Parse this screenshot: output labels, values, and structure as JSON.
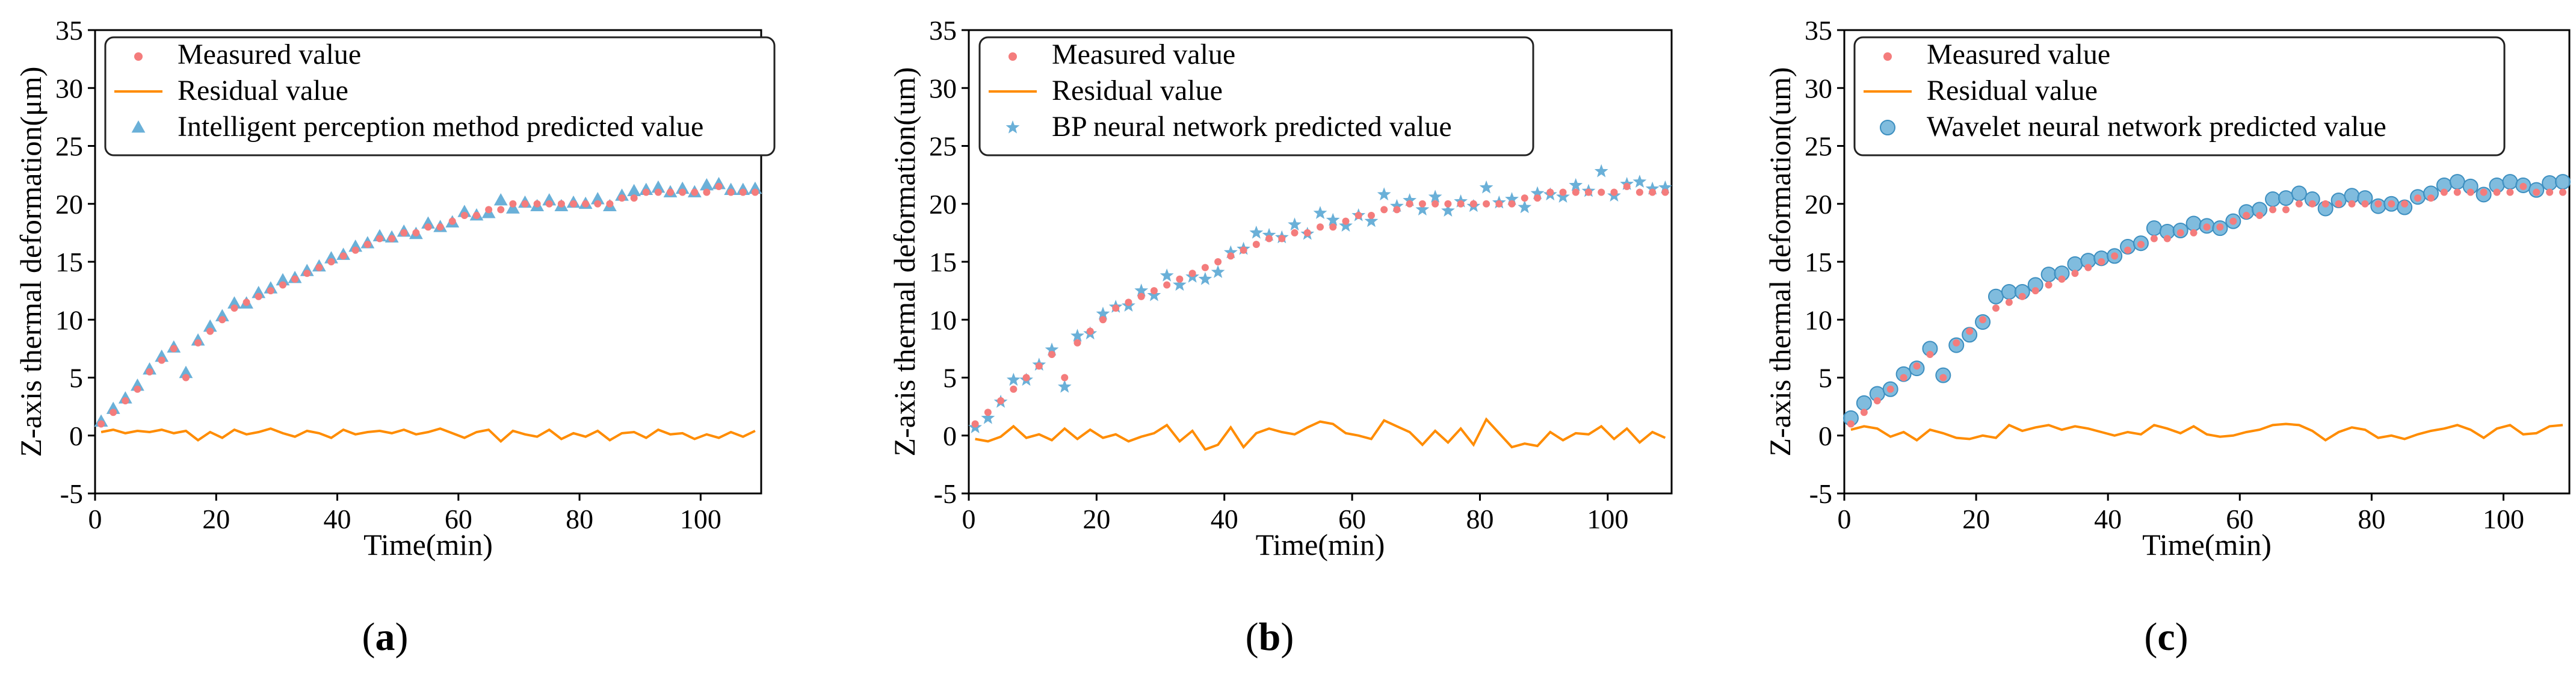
{
  "colors": {
    "measured": "#f47c7c",
    "residual": "#ff8c00",
    "predicted_a": "#6ab0d8",
    "predicted_b": "#6ab0d8",
    "predicted_c": "#6ab0d8",
    "axis": "#000000"
  },
  "chart_data": [
    {
      "type": "scatter",
      "caption_open": "(",
      "caption_letter": "a",
      "caption_close": ")",
      "xlabel": "Time(min)",
      "ylabel": "Z-axis thermal deformation(μm)",
      "xlim": [
        0,
        110
      ],
      "ylim": [
        -5,
        35
      ],
      "xticks": [
        0,
        20,
        40,
        60,
        80,
        100
      ],
      "yticks": [
        -5,
        0,
        5,
        10,
        15,
        20,
        25,
        30,
        35
      ],
      "legend_position": "top-left",
      "marker": "triangle",
      "x": [
        1,
        3,
        5,
        7,
        9,
        11,
        13,
        15,
        17,
        19,
        21,
        23,
        25,
        27,
        29,
        31,
        33,
        35,
        37,
        39,
        41,
        43,
        45,
        47,
        49,
        51,
        53,
        55,
        57,
        59,
        61,
        63,
        65,
        67,
        69,
        71,
        73,
        75,
        77,
        79,
        81,
        83,
        85,
        87,
        89,
        91,
        93,
        95,
        97,
        99,
        101,
        103,
        105,
        107,
        109
      ],
      "series": [
        {
          "name": "Measured value",
          "kind": "measured",
          "values": [
            1,
            2,
            3,
            4,
            5.5,
            6.5,
            7.5,
            5,
            8,
            9,
            10,
            11,
            11.5,
            12,
            12.5,
            13,
            13.5,
            14,
            14.5,
            15,
            15.5,
            16,
            16.5,
            17,
            17,
            17.5,
            17.5,
            18,
            18,
            18.5,
            19,
            19,
            19.5,
            19.5,
            20,
            20,
            20,
            20,
            20,
            20,
            20,
            20,
            20,
            20.5,
            20.5,
            21,
            21,
            21,
            21,
            21,
            21,
            21.5,
            21,
            21,
            21
          ]
        },
        {
          "name": "Residual value",
          "kind": "residual",
          "values": [
            0.3,
            0.5,
            0.2,
            0.4,
            0.3,
            0.5,
            0.2,
            0.4,
            -0.4,
            0.3,
            -0.2,
            0.5,
            0.1,
            0.3,
            0.6,
            0.2,
            -0.1,
            0.4,
            0.2,
            -0.2,
            0.5,
            0.1,
            0.3,
            0.4,
            0.2,
            0.5,
            0.1,
            0.3,
            0.6,
            0.2,
            -0.2,
            0.3,
            0.5,
            -0.5,
            0.4,
            0.1,
            -0.1,
            0.5,
            -0.3,
            0.2,
            -0.1,
            0.4,
            -0.4,
            0.2,
            0.3,
            -0.2,
            0.5,
            0.1,
            0.2,
            -0.3,
            0.1,
            -0.2,
            0.3,
            -0.1,
            0.4
          ]
        },
        {
          "name": "Intelligent perception method predicted value",
          "kind": "predicted",
          "values": [
            1.2,
            2.3,
            3.2,
            4.3,
            5.7,
            6.8,
            7.6,
            5.4,
            8.2,
            9.4,
            10.3,
            11.4,
            11.4,
            12.3,
            12.7,
            13.4,
            13.6,
            14.2,
            14.6,
            15.3,
            15.6,
            16.3,
            16.6,
            17.2,
            17.1,
            17.6,
            17.4,
            18.3,
            18,
            18.4,
            19.3,
            19,
            19.2,
            20.3,
            19.6,
            20.1,
            19.8,
            20.3,
            19.8,
            20.1,
            20,
            20.4,
            19.8,
            20.7,
            21.1,
            21.2,
            21.4,
            21,
            21.3,
            21,
            21.6,
            21.7,
            21.2,
            21.2,
            21.3
          ]
        }
      ]
    },
    {
      "type": "scatter",
      "caption_open": "(",
      "caption_letter": "b",
      "caption_close": ")",
      "xlabel": "Time(min)",
      "ylabel": "Z-axis thermal deformation(um)",
      "xlim": [
        0,
        110
      ],
      "ylim": [
        -5,
        35
      ],
      "xticks": [
        0,
        20,
        40,
        60,
        80,
        100
      ],
      "yticks": [
        -5,
        0,
        5,
        10,
        15,
        20,
        25,
        30,
        35
      ],
      "legend_position": "top-left",
      "marker": "star",
      "x": [
        1,
        3,
        5,
        7,
        9,
        11,
        13,
        15,
        17,
        19,
        21,
        23,
        25,
        27,
        29,
        31,
        33,
        35,
        37,
        39,
        41,
        43,
        45,
        47,
        49,
        51,
        53,
        55,
        57,
        59,
        61,
        63,
        65,
        67,
        69,
        71,
        73,
        75,
        77,
        79,
        81,
        83,
        85,
        87,
        89,
        91,
        93,
        95,
        97,
        99,
        101,
        103,
        105,
        107,
        109
      ],
      "series": [
        {
          "name": "Measured value",
          "kind": "measured",
          "values": [
            1,
            2,
            3,
            4,
            5,
            6,
            7,
            5,
            8,
            9,
            10,
            11,
            11.5,
            12,
            12.5,
            13,
            13.5,
            14,
            14.5,
            15,
            15.5,
            16,
            16.5,
            17,
            17,
            17.5,
            17.5,
            18,
            18,
            18.5,
            19,
            19,
            19.5,
            19.5,
            20,
            20,
            20,
            20,
            20,
            20,
            20,
            20,
            20,
            20.5,
            20.5,
            21,
            21,
            21,
            21,
            21,
            21,
            21.5,
            21,
            21,
            21
          ]
        },
        {
          "name": "Residual value",
          "kind": "residual",
          "values": [
            -0.3,
            -0.5,
            -0.1,
            0.8,
            -0.2,
            0.1,
            -0.4,
            0.6,
            -0.3,
            0.5,
            -0.2,
            0.1,
            -0.5,
            -0.1,
            0.2,
            0.9,
            -0.5,
            0.4,
            -1.2,
            -0.8,
            0.7,
            -1.0,
            0.2,
            0.6,
            0.3,
            0.1,
            0.7,
            1.2,
            1.0,
            0.2,
            0.0,
            -0.3,
            1.3,
            0.8,
            0.3,
            -0.8,
            0.4,
            -0.6,
            0.6,
            -0.8,
            1.4,
            0.2,
            -1.0,
            -0.7,
            -0.9,
            0.3,
            -0.4,
            0.2,
            0.1,
            0.8,
            -0.3,
            0.6,
            -0.6,
            0.3,
            -0.2
          ]
        },
        {
          "name": "BP neural network predicted value",
          "kind": "predicted",
          "values": [
            0.7,
            1.5,
            2.9,
            4.8,
            4.8,
            6.1,
            7.4,
            4.2,
            8.6,
            8.8,
            10.5,
            11.1,
            11.2,
            12.5,
            12.1,
            13.8,
            13,
            13.7,
            13.5,
            14.1,
            15.8,
            16.1,
            17.5,
            17.3,
            17.1,
            18.2,
            17.4,
            19.2,
            18.6,
            18.1,
            19.0,
            18.5,
            20.8,
            19.8,
            20.3,
            19.5,
            20.6,
            19.4,
            20.2,
            19.8,
            21.4,
            20.1,
            20.4,
            19.7,
            20.9,
            20.8,
            20.6,
            21.6,
            21.1,
            22.8,
            20.7,
            21.7,
            21.9,
            21.3,
            21.4
          ]
        }
      ]
    },
    {
      "type": "scatter",
      "caption_open": "(",
      "caption_letter": "c",
      "caption_close": ")",
      "xlabel": "Time(min)",
      "ylabel": "Z-axis thermal deformation(um)",
      "xlim": [
        0,
        110
      ],
      "ylim": [
        -5,
        35
      ],
      "xticks": [
        0,
        20,
        40,
        60,
        80,
        100
      ],
      "yticks": [
        -5,
        0,
        5,
        10,
        15,
        20,
        25,
        30,
        35
      ],
      "legend_position": "top-left",
      "marker": "circle",
      "x": [
        1,
        3,
        5,
        7,
        9,
        11,
        13,
        15,
        17,
        19,
        21,
        23,
        25,
        27,
        29,
        31,
        33,
        35,
        37,
        39,
        41,
        43,
        45,
        47,
        49,
        51,
        53,
        55,
        57,
        59,
        61,
        63,
        65,
        67,
        69,
        71,
        73,
        75,
        77,
        79,
        81,
        83,
        85,
        87,
        89,
        91,
        93,
        95,
        97,
        99,
        101,
        103,
        105,
        107,
        109
      ],
      "series": [
        {
          "name": "Measured value",
          "kind": "measured",
          "values": [
            1,
            2,
            3,
            4,
            5,
            6,
            7,
            5,
            8,
            9,
            10,
            11,
            11.5,
            12,
            12.5,
            13,
            13.5,
            14,
            14.5,
            15,
            15.5,
            16,
            16.5,
            17,
            17,
            17.5,
            17.5,
            18,
            18,
            18.5,
            19,
            19,
            19.5,
            19.5,
            20,
            20,
            20,
            20,
            20,
            20,
            20,
            20,
            20,
            20.5,
            20.5,
            21,
            21,
            21,
            21,
            21,
            21,
            21.5,
            21,
            21,
            21
          ]
        },
        {
          "name": "Residual value",
          "kind": "residual",
          "values": [
            0.5,
            0.8,
            0.6,
            -0.1,
            0.3,
            -0.4,
            0.5,
            0.2,
            -0.2,
            -0.3,
            0.0,
            -0.2,
            0.9,
            0.4,
            0.7,
            0.9,
            0.5,
            0.8,
            0.6,
            0.3,
            0.0,
            0.3,
            0.1,
            0.9,
            0.6,
            0.2,
            0.8,
            0.1,
            -0.1,
            0.0,
            0.3,
            0.5,
            0.9,
            1.0,
            0.9,
            0.4,
            -0.4,
            0.3,
            0.7,
            0.5,
            -0.2,
            0.0,
            -0.3,
            0.1,
            0.4,
            0.6,
            0.9,
            0.5,
            -0.2,
            0.6,
            0.9,
            0.1,
            0.2,
            0.8,
            0.9
          ]
        },
        {
          "name": "Wavelet neural network predicted value",
          "kind": "predicted",
          "values": [
            1.5,
            2.8,
            3.6,
            4.0,
            5.3,
            5.8,
            7.5,
            5.2,
            7.8,
            8.7,
            9.8,
            12.0,
            12.4,
            12.4,
            13.0,
            13.9,
            14.0,
            14.8,
            15.1,
            15.3,
            15.5,
            16.3,
            16.6,
            17.9,
            17.6,
            17.7,
            18.3,
            18.1,
            17.9,
            18.5,
            19.3,
            19.5,
            20.4,
            20.5,
            20.9,
            20.4,
            19.6,
            20.3,
            20.7,
            20.5,
            19.8,
            20.0,
            19.7,
            20.6,
            20.9,
            21.6,
            21.9,
            21.5,
            20.8,
            21.6,
            21.9,
            21.6,
            21.2,
            21.8,
            21.9
          ]
        }
      ]
    }
  ]
}
